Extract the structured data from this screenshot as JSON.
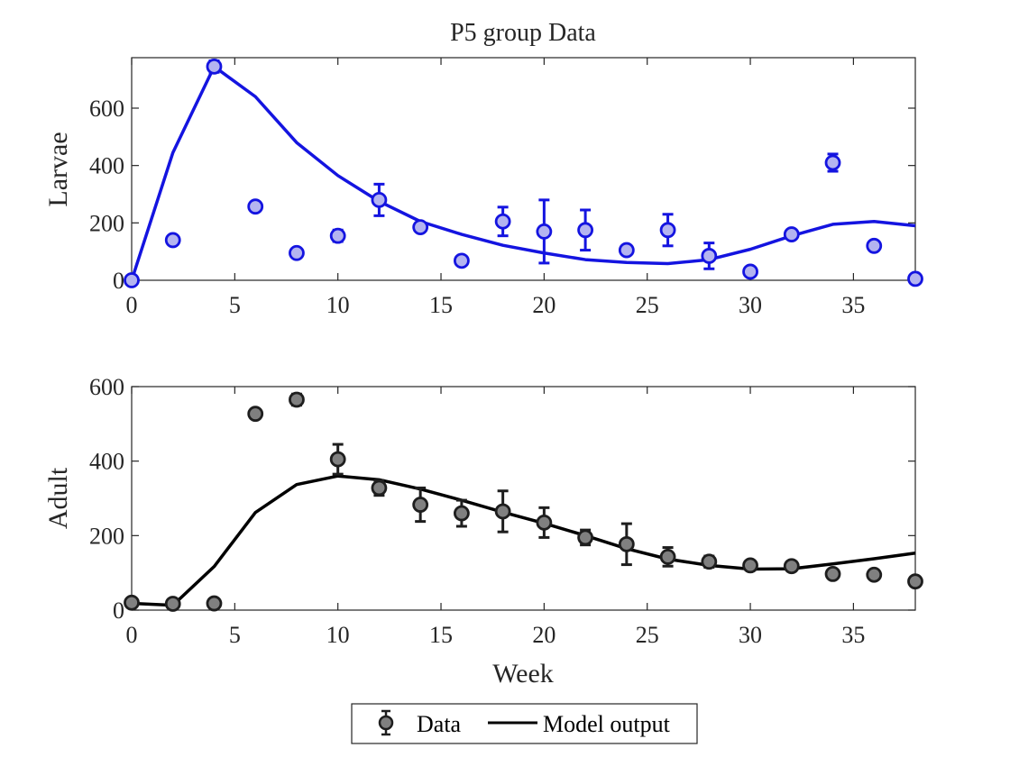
{
  "chart_data": [
    {
      "type": "scatter",
      "title": "P5 group Data",
      "xlabel": "",
      "ylabel": "Larvae",
      "xlim": [
        0,
        38
      ],
      "ylim": [
        0,
        750
      ],
      "xticks": [
        0,
        5,
        10,
        15,
        20,
        25,
        30,
        35
      ],
      "yticks": [
        0,
        200,
        400,
        600
      ],
      "grid": false,
      "colors": {
        "line": "#1414e0",
        "marker_fill": "#b4b4f0",
        "marker_edge": "#1414e0"
      },
      "series": [
        {
          "name": "Data",
          "kind": "points-with-error-bars",
          "points": [
            {
              "x": 0,
              "y": 0,
              "err": 0
            },
            {
              "x": 2,
              "y": 140,
              "err": 10
            },
            {
              "x": 4,
              "y": 745,
              "err": 20
            },
            {
              "x": 6,
              "y": 257,
              "err": 10
            },
            {
              "x": 8,
              "y": 95,
              "err": 10
            },
            {
              "x": 10,
              "y": 155,
              "err": 20
            },
            {
              "x": 12,
              "y": 280,
              "err": 55
            },
            {
              "x": 14,
              "y": 185,
              "err": 10
            },
            {
              "x": 16,
              "y": 68,
              "err": 10
            },
            {
              "x": 18,
              "y": 205,
              "err": 50
            },
            {
              "x": 20,
              "y": 170,
              "err": 110
            },
            {
              "x": 22,
              "y": 175,
              "err": 70
            },
            {
              "x": 24,
              "y": 105,
              "err": 10
            },
            {
              "x": 26,
              "y": 175,
              "err": 55
            },
            {
              "x": 28,
              "y": 85,
              "err": 45
            },
            {
              "x": 30,
              "y": 30,
              "err": 10
            },
            {
              "x": 32,
              "y": 160,
              "err": 10
            },
            {
              "x": 34,
              "y": 410,
              "err": 30
            },
            {
              "x": 36,
              "y": 120,
              "err": 10
            },
            {
              "x": 38,
              "y": 5,
              "err": 10
            }
          ]
        },
        {
          "name": "Model output",
          "kind": "line",
          "x": [
            0,
            2,
            4,
            6,
            8,
            10,
            12,
            14,
            16,
            18,
            20,
            22,
            24,
            26,
            28,
            30,
            32,
            34,
            36,
            38
          ],
          "y": [
            0,
            445,
            745,
            640,
            480,
            365,
            275,
            205,
            160,
            122,
            95,
            72,
            62,
            58,
            72,
            108,
            155,
            195,
            205,
            190
          ]
        }
      ]
    },
    {
      "type": "scatter",
      "title": "",
      "xlabel": "Week",
      "ylabel": "Adult",
      "xlim": [
        0,
        38
      ],
      "ylim": [
        0,
        600
      ],
      "xticks": [
        0,
        5,
        10,
        15,
        20,
        25,
        30,
        35
      ],
      "yticks": [
        0,
        200,
        400,
        600
      ],
      "grid": false,
      "colors": {
        "line": "#000000",
        "marker_fill": "#808080",
        "marker_edge": "#1e1e1e"
      },
      "series": [
        {
          "name": "Data",
          "kind": "points-with-error-bars",
          "points": [
            {
              "x": 0,
              "y": 20,
              "err": 5
            },
            {
              "x": 2,
              "y": 17,
              "err": 5
            },
            {
              "x": 4,
              "y": 18,
              "err": 5
            },
            {
              "x": 6,
              "y": 527,
              "err": 10
            },
            {
              "x": 8,
              "y": 565,
              "err": 15
            },
            {
              "x": 10,
              "y": 405,
              "err": 40
            },
            {
              "x": 12,
              "y": 328,
              "err": 20
            },
            {
              "x": 14,
              "y": 283,
              "err": 45
            },
            {
              "x": 16,
              "y": 260,
              "err": 35
            },
            {
              "x": 18,
              "y": 265,
              "err": 55
            },
            {
              "x": 20,
              "y": 235,
              "err": 40
            },
            {
              "x": 22,
              "y": 195,
              "err": 20
            },
            {
              "x": 24,
              "y": 177,
              "err": 55
            },
            {
              "x": 26,
              "y": 143,
              "err": 25
            },
            {
              "x": 28,
              "y": 130,
              "err": 15
            },
            {
              "x": 30,
              "y": 120,
              "err": 5
            },
            {
              "x": 32,
              "y": 118,
              "err": 10
            },
            {
              "x": 34,
              "y": 97,
              "err": 5
            },
            {
              "x": 36,
              "y": 95,
              "err": 5
            },
            {
              "x": 38,
              "y": 77,
              "err": 5
            }
          ]
        },
        {
          "name": "Model output",
          "kind": "line",
          "x": [
            0,
            2,
            4,
            6,
            8,
            10,
            12,
            14,
            16,
            18,
            20,
            22,
            24,
            26,
            28,
            30,
            32,
            34,
            36,
            38
          ],
          "y": [
            18,
            13,
            117,
            262,
            337,
            360,
            350,
            325,
            295,
            263,
            233,
            200,
            165,
            137,
            120,
            110,
            111,
            124,
            138,
            153
          ]
        }
      ]
    }
  ],
  "legend": {
    "placement": "bottom-center",
    "entries": [
      {
        "label": "Data",
        "kind": "marker"
      },
      {
        "label": "Model output",
        "kind": "line"
      }
    ]
  }
}
